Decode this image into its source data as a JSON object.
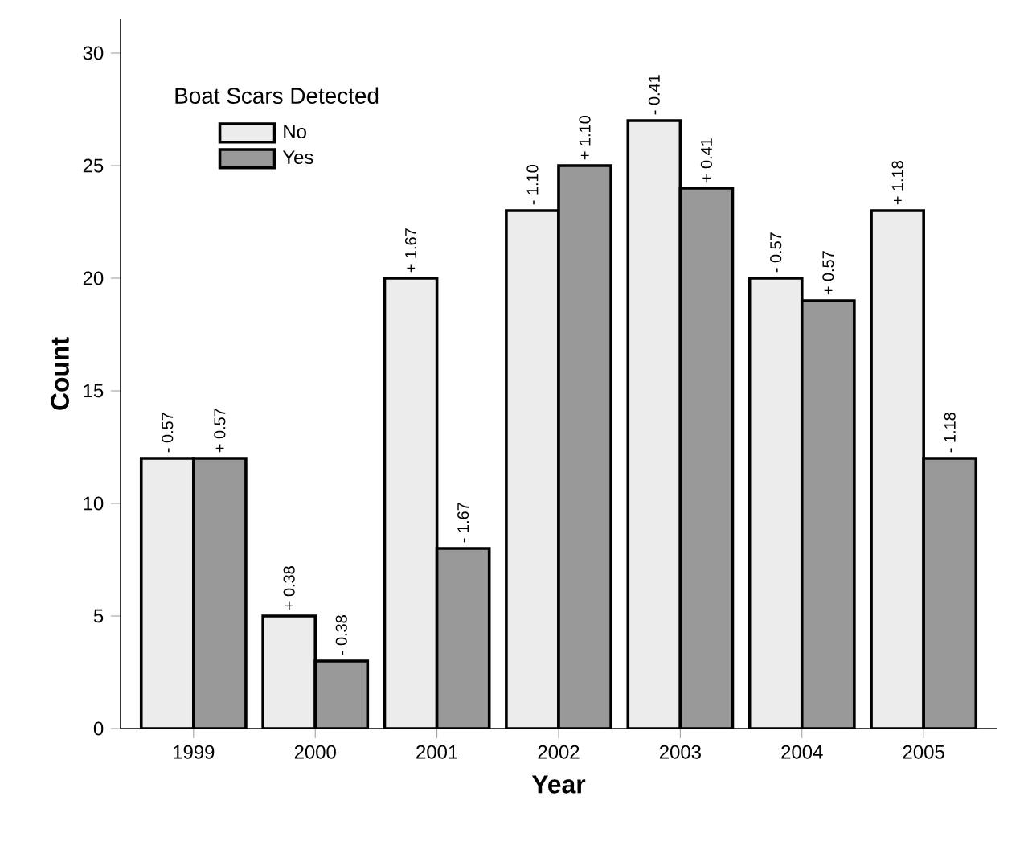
{
  "chart_data": {
    "type": "bar",
    "xlabel": "Year",
    "ylabel": "Count",
    "legend_title": "Boat Scars Detected",
    "legend": "top left",
    "grid": false,
    "categories": [
      "1999",
      "2000",
      "2001",
      "2002",
      "2003",
      "2004",
      "2005"
    ],
    "series": [
      {
        "name": "No",
        "color": "#ececec",
        "values": [
          12,
          5,
          20,
          23,
          27,
          20,
          23
        ]
      },
      {
        "name": "Yes",
        "color": "#999999",
        "values": [
          12,
          3,
          8,
          25,
          24,
          19,
          12
        ]
      }
    ],
    "annotations": [
      {
        "text": "- 0.57",
        "x": "1999",
        "y": 12
      },
      {
        "text": "+ 0.57",
        "x": "1999",
        "y": 12
      },
      {
        "text": "+ 0.38",
        "x": "2000",
        "y": 5
      },
      {
        "text": "- 0.38",
        "x": "2000",
        "y": 3
      },
      {
        "text": "+ 1.67",
        "x": "2001",
        "y": 20
      },
      {
        "text": "- 1.67",
        "x": "2001",
        "y": 8
      },
      {
        "text": "- 1.10",
        "x": "2002",
        "y": 23
      },
      {
        "text": "+ 1.10",
        "x": "2002",
        "y": 25
      },
      {
        "text": "- 0.41",
        "x": "2003",
        "y": 27
      },
      {
        "text": "+ 0.41",
        "x": "2003",
        "y": 24
      },
      {
        "text": "- 0.57",
        "x": "2004",
        "y": 20
      },
      {
        "text": "+ 0.57",
        "x": "2004",
        "y": 19
      },
      {
        "text": "+ 1.18",
        "x": "2005",
        "y": 23
      },
      {
        "text": "- 1.18",
        "x": "2005",
        "y": 12
      }
    ],
    "ylim": [
      0,
      31.5
    ],
    "yticks": [
      0,
      5,
      10,
      15,
      20,
      25,
      30
    ]
  }
}
